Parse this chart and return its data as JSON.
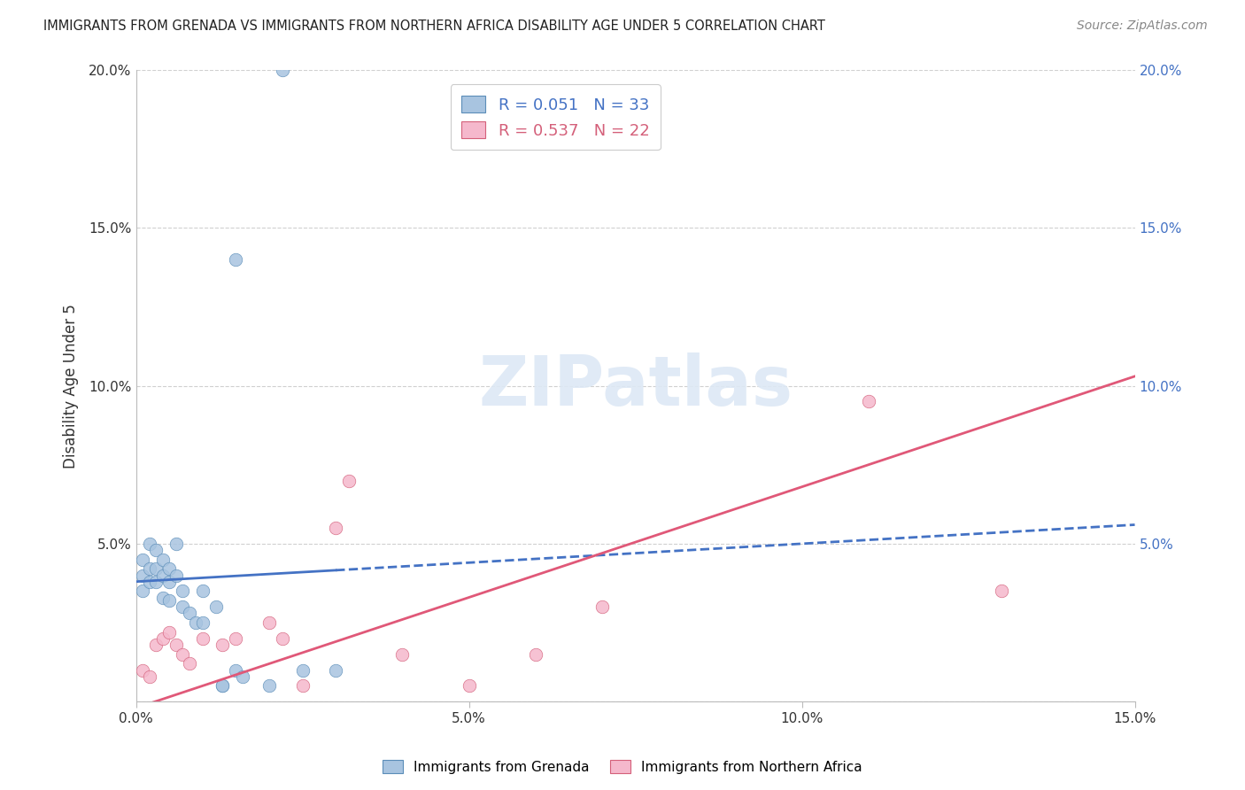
{
  "title": "IMMIGRANTS FROM GRENADA VS IMMIGRANTS FROM NORTHERN AFRICA DISABILITY AGE UNDER 5 CORRELATION CHART",
  "source": "Source: ZipAtlas.com",
  "ylabel": "Disability Age Under 5",
  "xlim": [
    0.0,
    0.15
  ],
  "ylim": [
    0.0,
    0.2
  ],
  "blue_color": "#a8c4e0",
  "blue_edge_color": "#5b8db8",
  "pink_color": "#f5b8cc",
  "pink_edge_color": "#d4607a",
  "blue_line_color": "#4472c4",
  "pink_line_color": "#e05878",
  "watermark_color": "#dde8f5",
  "grid_color": "#d0d0d0",
  "blue_r": 0.051,
  "blue_n": 33,
  "pink_r": 0.537,
  "pink_n": 22,
  "blue_intercept": 0.038,
  "blue_slope": 0.12,
  "pink_intercept": -0.002,
  "pink_slope": 0.7,
  "blue_x": [
    0.001,
    0.001,
    0.001,
    0.002,
    0.002,
    0.002,
    0.003,
    0.003,
    0.003,
    0.004,
    0.004,
    0.004,
    0.005,
    0.005,
    0.005,
    0.006,
    0.006,
    0.007,
    0.007,
    0.008,
    0.009,
    0.01,
    0.01,
    0.012,
    0.013,
    0.015,
    0.016,
    0.02,
    0.025,
    0.03,
    0.015,
    0.013,
    0.022
  ],
  "blue_y": [
    0.04,
    0.035,
    0.045,
    0.042,
    0.038,
    0.05,
    0.048,
    0.042,
    0.038,
    0.045,
    0.04,
    0.033,
    0.042,
    0.038,
    0.032,
    0.05,
    0.04,
    0.035,
    0.03,
    0.028,
    0.025,
    0.035,
    0.025,
    0.03,
    0.005,
    0.01,
    0.008,
    0.005,
    0.01,
    0.01,
    0.14,
    0.005,
    0.2
  ],
  "pink_x": [
    0.001,
    0.002,
    0.003,
    0.004,
    0.005,
    0.006,
    0.007,
    0.008,
    0.01,
    0.013,
    0.015,
    0.02,
    0.022,
    0.025,
    0.03,
    0.032,
    0.04,
    0.05,
    0.06,
    0.07,
    0.11,
    0.13
  ],
  "pink_y": [
    0.01,
    0.008,
    0.018,
    0.02,
    0.022,
    0.018,
    0.015,
    0.012,
    0.02,
    0.018,
    0.02,
    0.025,
    0.02,
    0.005,
    0.055,
    0.07,
    0.015,
    0.005,
    0.015,
    0.03,
    0.095,
    0.035
  ]
}
